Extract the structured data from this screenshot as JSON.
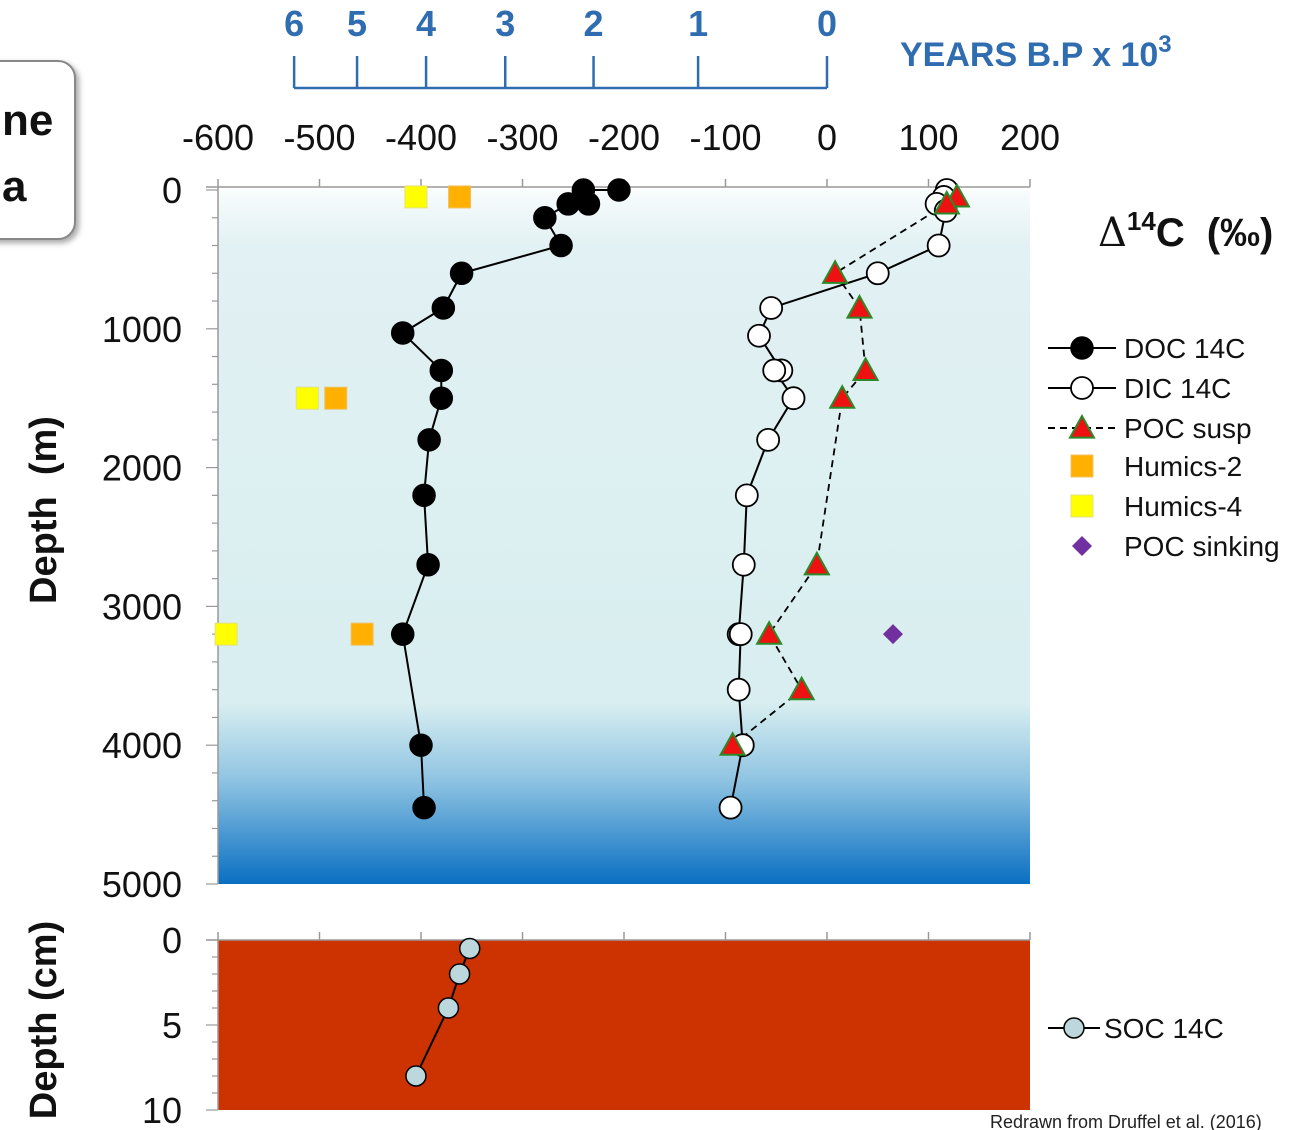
{
  "inset_fragment": [
    "ne",
    "a"
  ],
  "credit": "Redrawn from Druffel et al. (2016)",
  "chart_data": {
    "type": "scatter",
    "top_axis": {
      "label": "YEARS B.P x 10",
      "label_sup": "3",
      "ticks": [
        {
          "label": "6",
          "d14c": -525
        },
        {
          "label": "5",
          "d14c": -463
        },
        {
          "label": "4",
          "d14c": -395
        },
        {
          "label": "3",
          "d14c": -317
        },
        {
          "label": "2",
          "d14c": -230
        },
        {
          "label": "1",
          "d14c": -127
        },
        {
          "label": "0",
          "d14c": 0
        }
      ]
    },
    "x_axis": {
      "label_prefix": "Δ",
      "label_sup": "14",
      "label_main": "C",
      "label_unit": "(‰)",
      "range": [
        -600,
        200
      ],
      "ticks": [
        {
          "v": -600,
          "label": "-600"
        },
        {
          "v": -500,
          "label": "-500"
        },
        {
          "v": -400,
          "label": "-400"
        },
        {
          "v": -300,
          "label": "-300"
        },
        {
          "v": -200,
          "label": "-200"
        },
        {
          "v": -100,
          "label": "-100"
        },
        {
          "v": 0,
          "label": "0"
        },
        {
          "v": 100,
          "label": "100"
        },
        {
          "v": 200,
          "label": "200"
        }
      ]
    },
    "water_panel": {
      "ylabel": "Depth  (m)",
      "range": [
        0,
        5000
      ],
      "ticks": [
        {
          "v": 0,
          "label": "0"
        },
        {
          "v": 1000,
          "label": "1000"
        },
        {
          "v": 2000,
          "label": "2000"
        },
        {
          "v": 3000,
          "label": "3000"
        },
        {
          "v": 4000,
          "label": "4000"
        },
        {
          "v": 5000,
          "label": "5000"
        }
      ],
      "series": [
        {
          "name": "DOC 14C",
          "marker": "circle-filled",
          "points": [
            [
              -205,
              0
            ],
            [
              -240,
              0
            ],
            [
              -235,
              100
            ],
            [
              -255,
              100
            ],
            [
              -278,
              200
            ],
            [
              -262,
              400
            ],
            [
              -360,
              600
            ],
            [
              -378,
              850
            ],
            [
              -418,
              1030
            ],
            [
              -380,
              1300
            ],
            [
              -380,
              1500
            ],
            [
              -392,
              1800
            ],
            [
              -397,
              2200
            ],
            [
              -393,
              2700
            ],
            [
              -418,
              3200
            ],
            [
              -400,
              4000
            ],
            [
              -397,
              4450
            ]
          ]
        },
        {
          "name": "DIC 14C",
          "marker": "circle-open",
          "points": [
            [
              118,
              0
            ],
            [
              115,
              50
            ],
            [
              108,
              100
            ],
            [
              117,
              150
            ],
            [
              110,
              400
            ],
            [
              50,
              600
            ],
            [
              -55,
              850
            ],
            [
              -67,
              1050
            ],
            [
              -45,
              1300
            ],
            [
              -52,
              1300
            ],
            [
              -33,
              1500
            ],
            [
              -58,
              1800
            ],
            [
              -79,
              2200
            ],
            [
              -82,
              2700
            ],
            [
              -87,
              3200
            ],
            [
              -85,
              3200
            ],
            [
              -87,
              3600
            ],
            [
              -83,
              4000
            ],
            [
              -95,
              4450
            ]
          ]
        },
        {
          "name": "POC susp",
          "marker": "triangle",
          "points": [
            [
              128,
              50
            ],
            [
              118,
              100
            ],
            [
              8,
              600
            ],
            [
              32,
              850
            ],
            [
              38,
              1300
            ],
            [
              15,
              1500
            ],
            [
              -10,
              2700
            ],
            [
              -57,
              3200
            ],
            [
              -25,
              3600
            ],
            [
              -93,
              4000
            ]
          ]
        },
        {
          "name": "Humics-2",
          "marker": "square-orange",
          "points": [
            [
              -362,
              50
            ],
            [
              -484,
              1500
            ],
            [
              -458,
              3200
            ]
          ]
        },
        {
          "name": "Humics-4",
          "marker": "square-yellow",
          "points": [
            [
              -405,
              50
            ],
            [
              -512,
              1500
            ],
            [
              -592,
              3200
            ]
          ]
        },
        {
          "name": "POC sinking",
          "marker": "diamond",
          "points": [
            [
              65,
              3200
            ]
          ]
        }
      ]
    },
    "sediment_panel": {
      "ylabel": "Depth (cm)",
      "range": [
        0,
        10
      ],
      "ticks": [
        {
          "v": 0,
          "label": "0"
        },
        {
          "v": 5,
          "label": "5"
        },
        {
          "v": 10,
          "label": "10"
        }
      ],
      "series": [
        {
          "name": "SOC 14C",
          "marker": "circle-grey",
          "points": [
            [
              -352,
              0.5
            ],
            [
              -362,
              2
            ],
            [
              -373,
              4
            ],
            [
              -405,
              8
            ]
          ]
        }
      ]
    },
    "colors": {
      "doc": "#000000",
      "dic_fill": "#ffffff",
      "poc_susp": "#ee1111",
      "poc_susp_edge": "#2a8a2a",
      "humics2": "#ffb000",
      "humics4": "#ffff00",
      "poc_sinking": "#7030a0",
      "soc": "#bcd8dc",
      "sediment": "#cc3300",
      "age_axis": "#2f6cb0",
      "water_top": "#f6fbfc",
      "water_mid": "#d9eef0",
      "water_bottom": "#0a72c4"
    }
  }
}
